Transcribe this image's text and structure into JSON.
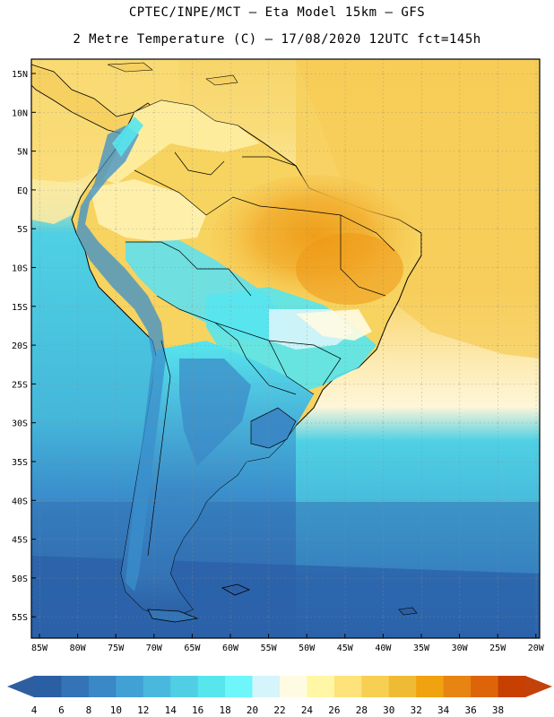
{
  "header": {
    "title_line1": "CPTEC/INPE/MCT –  Eta Model 15km – GFS",
    "title_line2": "2 Metre Temperature (C) – 17/08/2020 12UTC fct=145h"
  },
  "map": {
    "lat_ticks": [
      "15N",
      "10N",
      "5N",
      "EQ",
      "5S",
      "10S",
      "15S",
      "20S",
      "25S",
      "30S",
      "35S",
      "40S",
      "45S",
      "50S",
      "55S"
    ],
    "lon_ticks": [
      "85W",
      "80W",
      "75W",
      "70W",
      "65W",
      "60W",
      "55W",
      "50W",
      "45W",
      "40W",
      "35W",
      "30W",
      "25W",
      "20W"
    ],
    "colors": {
      "ocean_cold": "#2a62a8",
      "ocean_mid": "#3a8fcc",
      "ocean_warm": "#4fd0e4",
      "land_hot": "#f0a020",
      "land_warm": "#f6cf5a",
      "land_pale": "#fffcd8",
      "andes": "#4aa0d8"
    }
  },
  "colorbar": {
    "labels": [
      "4",
      "6",
      "8",
      "10",
      "12",
      "14",
      "16",
      "18",
      "20",
      "22",
      "24",
      "26",
      "28",
      "30",
      "32",
      "34",
      "36",
      "38"
    ],
    "colors": [
      "#2b5fa4",
      "#3373b6",
      "#3a88c6",
      "#41a1d4",
      "#4ab8dc",
      "#50cfe4",
      "#57e6ee",
      "#6ff6fb",
      "#d6f4fb",
      "#fffbe2",
      "#fff6a6",
      "#fde37a",
      "#f7cf52",
      "#efbb34",
      "#f0a20f",
      "#e88412",
      "#dd6408",
      "#c74002"
    ],
    "low_color": "#2f5ea0",
    "high_color": "#c3420a"
  }
}
